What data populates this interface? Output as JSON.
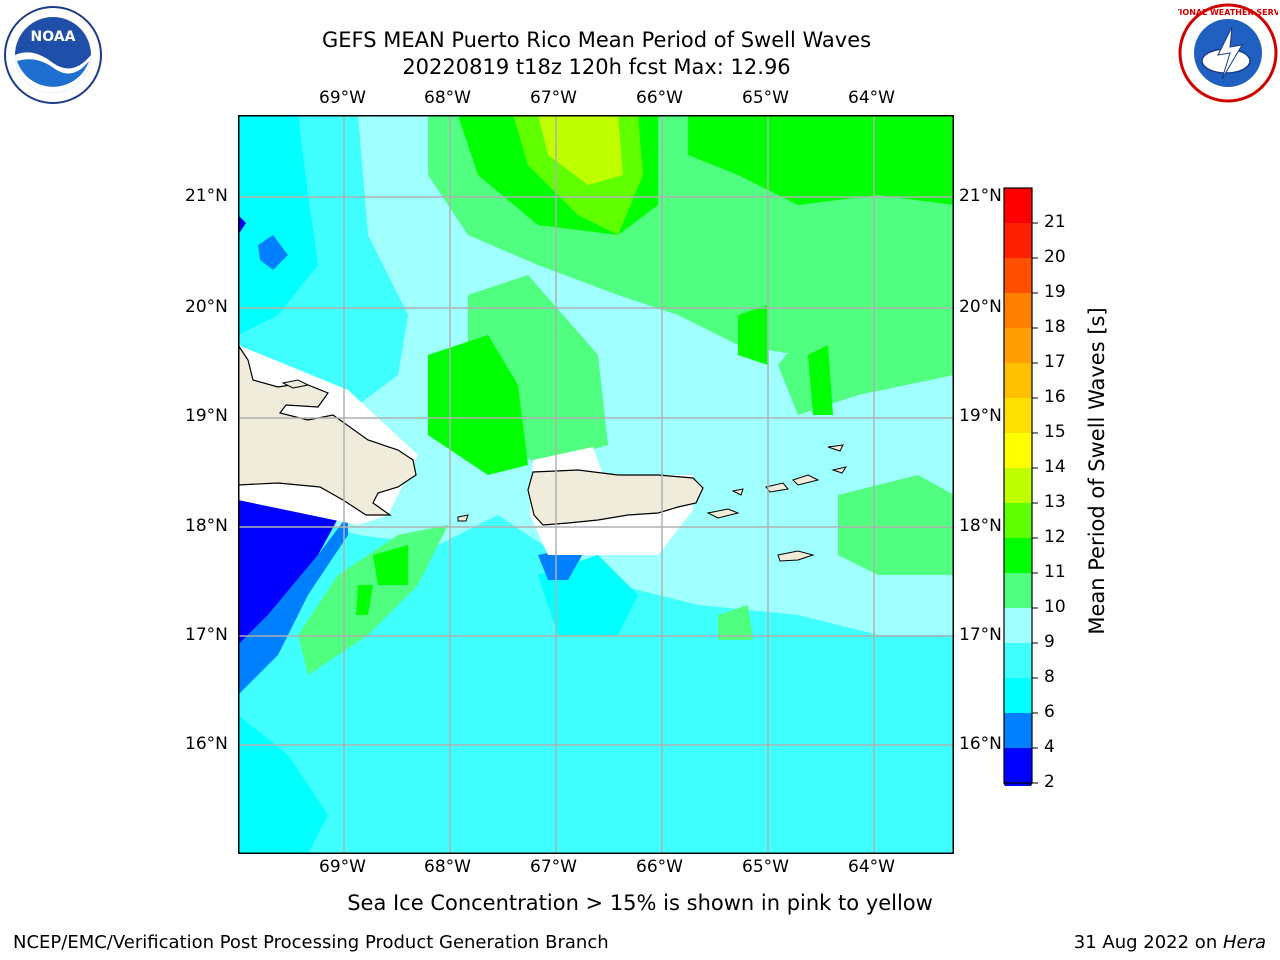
{
  "header": {
    "title_line1": "GEFS MEAN Puerto Rico Mean Period of Swell Waves",
    "title_line2": "20220819 t18z 120h fcst   Max: 12.96"
  },
  "logos": {
    "left": {
      "name": "noaa-logo",
      "text": "NOAA"
    },
    "right": {
      "name": "nws-logo",
      "text": "NATIONAL WEATHER SERVICE"
    }
  },
  "map": {
    "lon_labels": [
      "69°W",
      "68°W",
      "67°W",
      "66°W",
      "65°W",
      "64°W"
    ],
    "lat_labels": [
      "21°N",
      "20°N",
      "19°N",
      "18°N",
      "17°N",
      "16°N"
    ],
    "extent": {
      "lon_min": -70,
      "lon_max": -63.25,
      "lat_min": 15.0,
      "lat_max": 21.75
    },
    "colors": {
      "land": "#efecdc",
      "grid": "#b0b0b0",
      "coast": "#000000"
    }
  },
  "colorbar": {
    "label": "Mean Period of Swell Waves [s]",
    "ticks": [
      "2",
      "4",
      "6",
      "8",
      "9",
      "10",
      "11",
      "12",
      "13",
      "14",
      "15",
      "16",
      "17",
      "18",
      "19",
      "20",
      "21"
    ],
    "colors": [
      "#0000ff",
      "#0080ff",
      "#00ffff",
      "#40ffff",
      "#a0ffff",
      "#50ff80",
      "#00ff00",
      "#60ff00",
      "#c0ff00",
      "#ffff00",
      "#ffe000",
      "#ffc000",
      "#ffa000",
      "#ff8000",
      "#ff5000",
      "#ff2000",
      "#ff0000"
    ],
    "under_color": "#0000ff"
  },
  "caption": "Sea Ice Concentration > 15% is shown in pink to yellow",
  "footer": {
    "left": "NCEP/EMC/Verification Post Processing Product Generation Branch",
    "right_date": "31 Aug 2022 on ",
    "right_host": "Hera"
  }
}
